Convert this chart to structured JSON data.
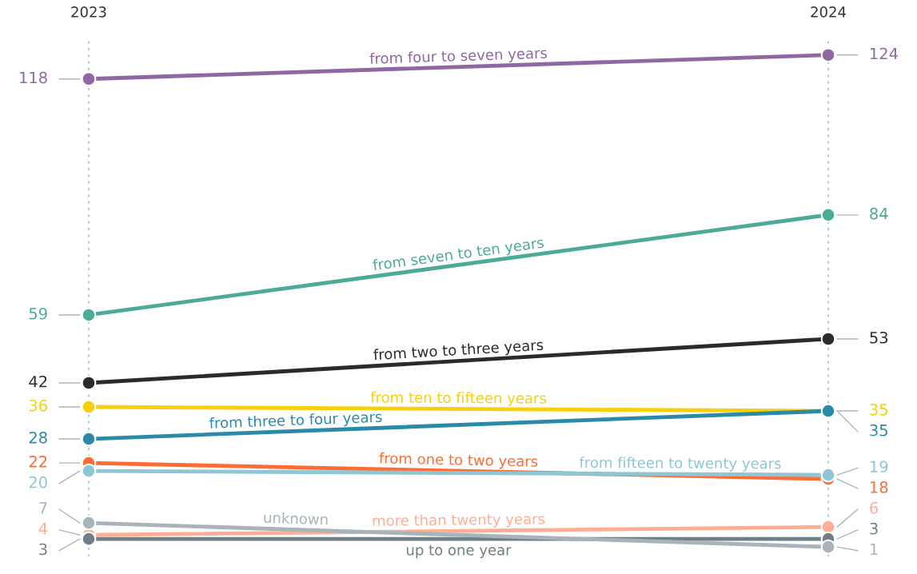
{
  "chart_data": {
    "type": "line",
    "categories": [
      "2023",
      "2024"
    ],
    "data_labels": true,
    "grid": "x",
    "marker": "circle",
    "line_style": "solid",
    "series": [
      {
        "name": "from four to seven years",
        "color": "#8e67a3",
        "values": [
          118,
          124
        ]
      },
      {
        "name": "from seven to ten years",
        "color": "#4bab97",
        "values": [
          59,
          84
        ]
      },
      {
        "name": "from two to three years",
        "color": "#2b2b2b",
        "values": [
          42,
          53
        ]
      },
      {
        "name": "from ten to fifteen years",
        "color": "#f7cf0b",
        "values": [
          36,
          35
        ]
      },
      {
        "name": "from three to four years",
        "color": "#2a8aa8",
        "values": [
          28,
          35
        ]
      },
      {
        "name": "from one to two years",
        "color": "#ff6b35",
        "values": [
          22,
          18
        ]
      },
      {
        "name": "from fifteen to twenty years",
        "color": "#8fc6d6",
        "values": [
          20,
          19
        ]
      },
      {
        "name": "more than twenty years",
        "color": "#ffae94",
        "values": [
          4,
          6
        ]
      },
      {
        "name": "up to one year",
        "color": "#6e7f86",
        "values": [
          3,
          3
        ]
      },
      {
        "name": "unknown",
        "color": "#a8b4b9",
        "values": [
          7,
          1
        ]
      }
    ]
  }
}
